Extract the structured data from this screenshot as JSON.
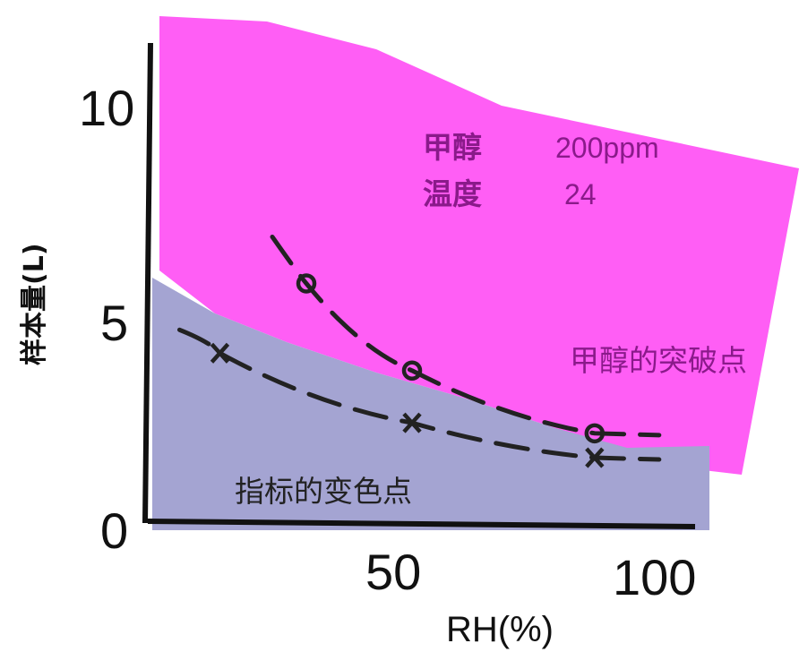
{
  "colors": {
    "methanol_band": "#ff5ef5",
    "indicator_band": "#a4a4d2",
    "annotation_text": "#8a1a8a",
    "curve": "#222222"
  },
  "chart_data": {
    "type": "line",
    "xlabel": "RH(%)",
    "ylabel": "样本量(L)",
    "xlim": [
      0,
      110
    ],
    "ylim": [
      0,
      12
    ],
    "x_ticks": [
      "50",
      "100"
    ],
    "y_ticks": [
      "0",
      "5",
      "10"
    ],
    "axis_zero_label": "0",
    "series": [
      {
        "marker": "o",
        "x": [
          33,
          55,
          93
        ],
        "y": [
          6.9,
          4.4,
          2.6
        ]
      },
      {
        "marker": "x",
        "x": [
          15,
          55,
          93
        ],
        "y": [
          4.9,
          2.9,
          1.9
        ]
      }
    ],
    "annotations": {
      "substance_label": "甲醇",
      "substance_value": "200ppm",
      "temp_label": "温度",
      "temp_value": "24",
      "methanol_band_label": "甲醇的突破点",
      "indicator_band_label": "指标的变色点"
    }
  }
}
